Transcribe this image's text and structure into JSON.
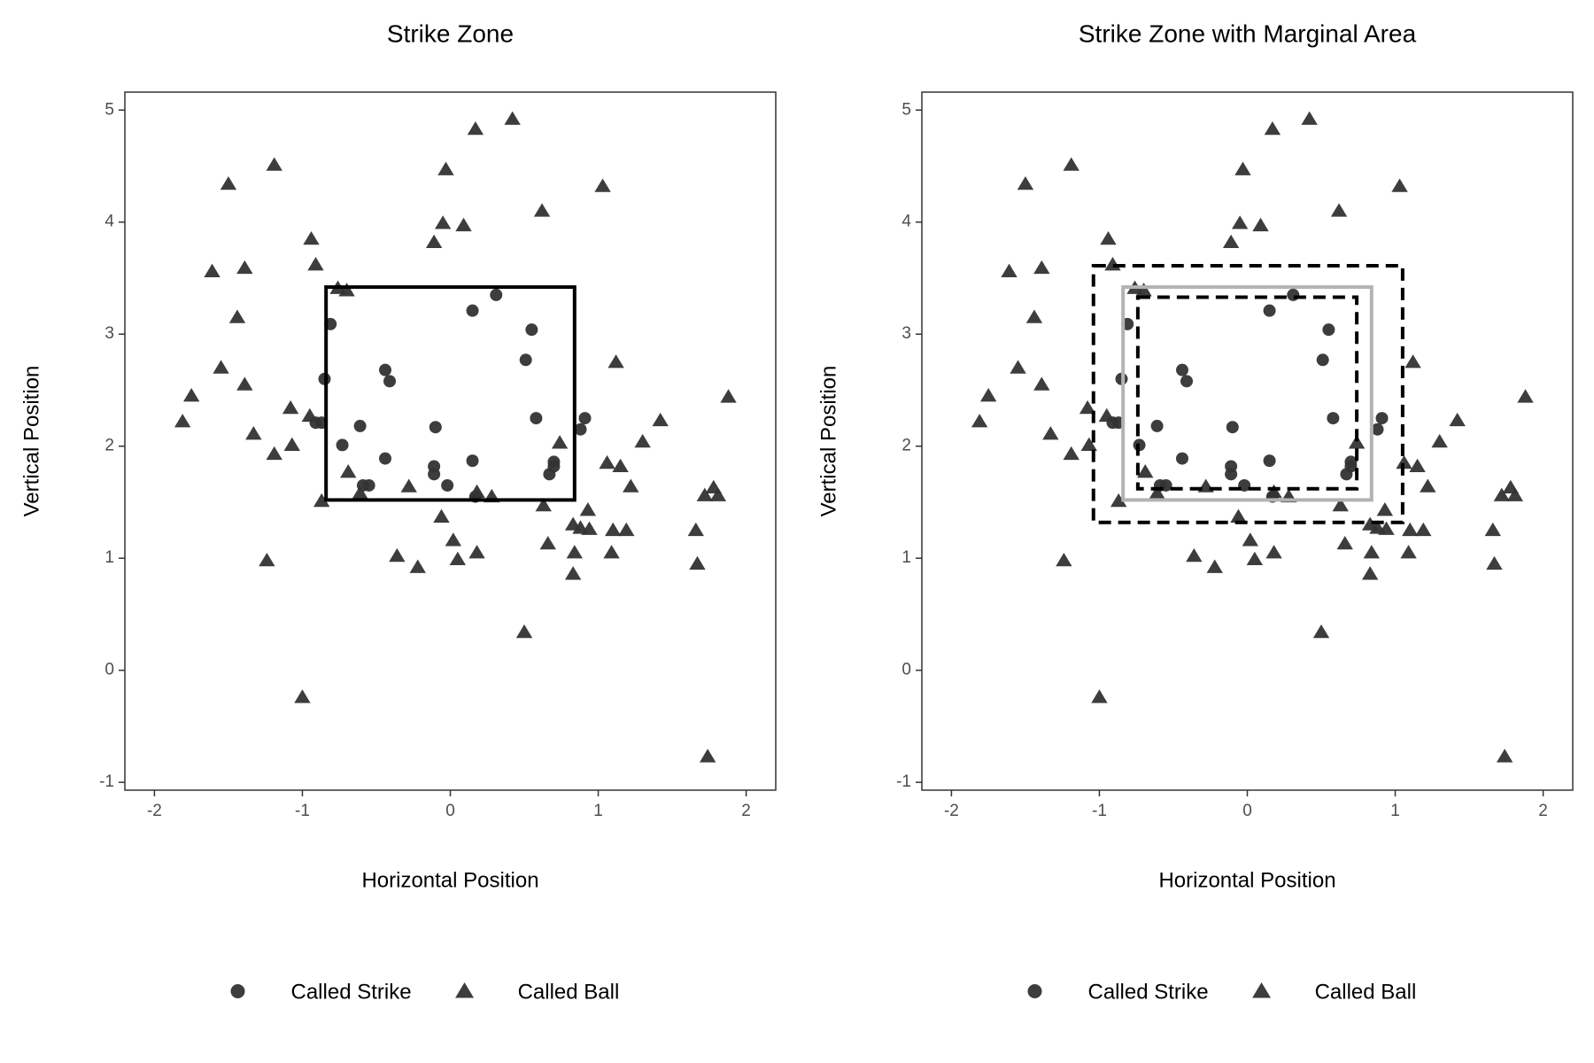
{
  "chart_data": [
    {
      "type": "scatter",
      "title": "Strike Zone",
      "x_label": "Horizontal Position",
      "y_label": "Vertical Position",
      "xlim": [
        -2.2,
        2.2
      ],
      "ylim": [
        -1.07,
        5.16
      ],
      "xticks": [
        -2,
        -1,
        0,
        1,
        2
      ],
      "yticks": [
        -1,
        0,
        1,
        2,
        3,
        4,
        5
      ],
      "legend": "bottom",
      "series": [
        {
          "name": "Called Strike",
          "marker": "circle",
          "color": "#333333",
          "x": [
            -0.81,
            -0.85,
            -0.87,
            -0.91,
            -0.44,
            -0.41,
            -0.61,
            -0.73,
            -0.44,
            -0.59,
            -0.55,
            -0.11,
            -0.11,
            -0.1,
            -0.02,
            0.15,
            0.17,
            0.15,
            0.31,
            0.55,
            0.51,
            0.58,
            0.91,
            0.88,
            0.7,
            0.7,
            0.67
          ],
          "values": [
            3.09,
            2.6,
            2.21,
            2.21,
            2.68,
            2.58,
            2.18,
            2.01,
            1.89,
            1.65,
            1.65,
            1.82,
            1.75,
            2.17,
            1.65,
            1.87,
            1.55,
            3.21,
            3.35,
            3.04,
            2.77,
            2.25,
            2.25,
            2.15,
            1.86,
            1.82,
            1.75
          ]
        },
        {
          "name": "Called Ball",
          "marker": "triangle",
          "color": "#333333",
          "x": [
            -1.81,
            -1.75,
            -1.61,
            -1.55,
            -1.5,
            -1.44,
            -1.39,
            -1.39,
            -1.33,
            -1.24,
            -1.19,
            -1.19,
            -1.08,
            -1.07,
            -1.0,
            -0.94,
            -0.95,
            -0.91,
            -0.87,
            -0.76,
            -0.7,
            -0.69,
            -0.61,
            -0.36,
            -0.28,
            -0.22,
            -0.11,
            -0.06,
            -0.05,
            -0.03,
            0.02,
            0.05,
            0.09,
            0.17,
            0.18,
            0.18,
            0.28,
            0.42,
            0.5,
            0.62,
            0.63,
            0.66,
            0.74,
            0.83,
            0.84,
            0.83,
            0.88,
            0.93,
            0.94,
            1.03,
            1.06,
            1.09,
            1.12,
            1.1,
            1.15,
            1.19,
            1.22,
            1.3,
            1.42,
            1.66,
            1.67,
            1.72,
            1.74,
            1.78,
            1.81,
            1.88
          ],
          "values": [
            2.22,
            2.45,
            3.56,
            2.7,
            4.34,
            3.15,
            3.59,
            2.55,
            2.11,
            0.98,
            1.93,
            4.51,
            2.34,
            2.01,
            -0.24,
            3.85,
            2.27,
            3.62,
            1.51,
            3.41,
            3.39,
            1.77,
            1.58,
            1.02,
            1.64,
            0.92,
            3.82,
            1.37,
            3.99,
            4.47,
            1.16,
            0.99,
            3.97,
            4.83,
            1.05,
            1.59,
            1.55,
            4.92,
            0.34,
            4.1,
            1.47,
            1.13,
            2.03,
            1.3,
            1.05,
            0.86,
            1.27,
            1.43,
            1.26,
            4.32,
            1.85,
            1.05,
            2.75,
            1.25,
            1.82,
            1.25,
            1.64,
            2.04,
            2.23,
            1.25,
            0.95,
            1.56,
            -0.77,
            1.63,
            1.56,
            2.44
          ]
        }
      ],
      "rectangles": [
        {
          "x": [
            -0.84,
            0.84
          ],
          "y": [
            1.52,
            3.42
          ],
          "color": "#000000",
          "dashed": false
        }
      ]
    },
    {
      "type": "scatter",
      "title": "Strike Zone with Marginal Area",
      "x_label": "Horizontal Position",
      "y_label": "Vertical Position",
      "xlim": [
        -2.2,
        2.2
      ],
      "ylim": [
        -1.07,
        5.16
      ],
      "xticks": [
        -2,
        -1,
        0,
        1,
        2
      ],
      "yticks": [
        -1,
        0,
        1,
        2,
        3,
        4,
        5
      ],
      "legend": "bottom",
      "series": [
        {
          "name": "Called Strike",
          "marker": "circle",
          "color": "#333333",
          "x": [
            -0.81,
            -0.85,
            -0.87,
            -0.91,
            -0.44,
            -0.41,
            -0.61,
            -0.73,
            -0.44,
            -0.59,
            -0.55,
            -0.11,
            -0.11,
            -0.1,
            -0.02,
            0.15,
            0.17,
            0.15,
            0.31,
            0.55,
            0.51,
            0.58,
            0.91,
            0.88,
            0.7,
            0.7,
            0.67
          ],
          "values": [
            3.09,
            2.6,
            2.21,
            2.21,
            2.68,
            2.58,
            2.18,
            2.01,
            1.89,
            1.65,
            1.65,
            1.82,
            1.75,
            2.17,
            1.65,
            1.87,
            1.55,
            3.21,
            3.35,
            3.04,
            2.77,
            2.25,
            2.25,
            2.15,
            1.86,
            1.82,
            1.75
          ]
        },
        {
          "name": "Called Ball",
          "marker": "triangle",
          "color": "#333333",
          "x": [
            -1.81,
            -1.75,
            -1.61,
            -1.55,
            -1.5,
            -1.44,
            -1.39,
            -1.39,
            -1.33,
            -1.24,
            -1.19,
            -1.19,
            -1.08,
            -1.07,
            -1.0,
            -0.94,
            -0.95,
            -0.91,
            -0.87,
            -0.76,
            -0.7,
            -0.69,
            -0.61,
            -0.36,
            -0.28,
            -0.22,
            -0.11,
            -0.06,
            -0.05,
            -0.03,
            0.02,
            0.05,
            0.09,
            0.17,
            0.18,
            0.18,
            0.28,
            0.42,
            0.5,
            0.62,
            0.63,
            0.66,
            0.74,
            0.83,
            0.84,
            0.83,
            0.88,
            0.93,
            0.94,
            1.03,
            1.06,
            1.09,
            1.12,
            1.1,
            1.15,
            1.19,
            1.22,
            1.3,
            1.42,
            1.66,
            1.67,
            1.72,
            1.74,
            1.78,
            1.81,
            1.88
          ],
          "values": [
            2.22,
            2.45,
            3.56,
            2.7,
            4.34,
            3.15,
            3.59,
            2.55,
            2.11,
            0.98,
            1.93,
            4.51,
            2.34,
            2.01,
            -0.24,
            3.85,
            2.27,
            3.62,
            1.51,
            3.41,
            3.39,
            1.77,
            1.58,
            1.02,
            1.64,
            0.92,
            3.82,
            1.37,
            3.99,
            4.47,
            1.16,
            0.99,
            3.97,
            4.83,
            1.05,
            1.59,
            1.55,
            4.92,
            0.34,
            4.1,
            1.47,
            1.13,
            2.03,
            1.3,
            1.05,
            0.86,
            1.27,
            1.43,
            1.26,
            4.32,
            1.85,
            1.05,
            2.75,
            1.25,
            1.82,
            1.25,
            1.64,
            2.04,
            2.23,
            1.25,
            0.95,
            1.56,
            -0.77,
            1.63,
            1.56,
            2.44
          ]
        }
      ],
      "rectangles": [
        {
          "x": [
            -0.84,
            0.84
          ],
          "y": [
            1.52,
            3.42
          ],
          "color": "#b3b3b3",
          "dashed": false
        },
        {
          "x": [
            -1.04,
            1.05
          ],
          "y": [
            1.32,
            3.61
          ],
          "color": "#000000",
          "dashed": true
        },
        {
          "x": [
            -0.74,
            0.74
          ],
          "y": [
            1.62,
            3.33
          ],
          "color": "#000000",
          "dashed": true
        }
      ]
    }
  ]
}
